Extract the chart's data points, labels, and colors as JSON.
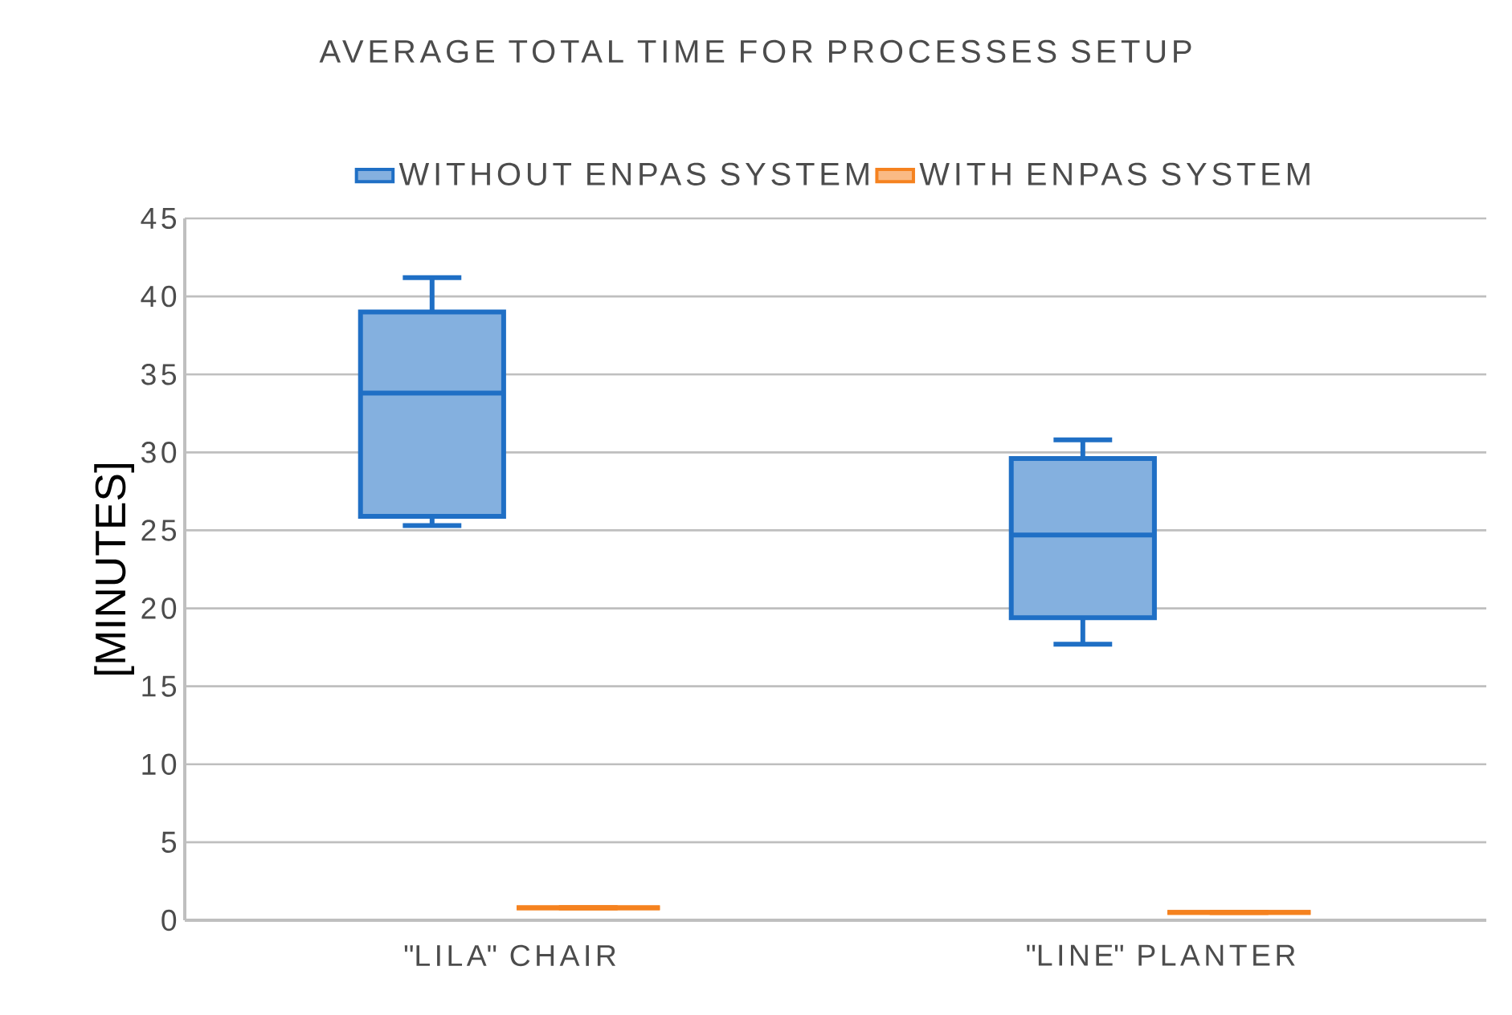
{
  "chart_data": {
    "type": "box",
    "title": "AVERAGE TOTAL TIME FOR PROCESSES SETUP",
    "ylabel": "[MINUTES]",
    "categories": [
      "\"LILA\" CHAIR",
      "\"LINE\" PLANTER"
    ],
    "series": [
      {
        "name": "WITHOUT ENPAS SYSTEM",
        "color": "#1f6fc5",
        "boxes": [
          {
            "low": 25.3,
            "q1": 25.9,
            "median": 33.8,
            "q3": 39,
            "high": 41.2
          },
          {
            "low": 17.7,
            "q1": 19.4,
            "median": 24.7,
            "q3": 29.6,
            "high": 30.8
          }
        ]
      },
      {
        "name": "WITH ENPAS SYSTEM",
        "color": "#f5821f",
        "boxes": [
          {
            "low": 0.8,
            "q1": 0.8,
            "median": 0.8,
            "q3": 0.8,
            "high": 0.8
          },
          {
            "low": 0.5,
            "q1": 0.5,
            "median": 0.5,
            "q3": 0.5,
            "high": 0.5
          }
        ]
      }
    ],
    "ylim": [
      0,
      45
    ],
    "yticks": [
      0,
      5,
      10,
      15,
      20,
      25,
      30,
      35,
      40,
      45
    ],
    "grid": "y",
    "legend": "top"
  }
}
